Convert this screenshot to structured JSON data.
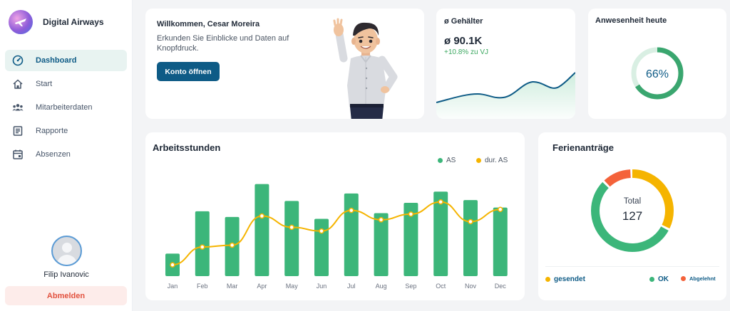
{
  "app": {
    "name": "Digital Airways"
  },
  "sidebar": {
    "items": [
      {
        "label": "Dashboard",
        "icon": "dashboard-icon",
        "active": true
      },
      {
        "label": "Start",
        "icon": "home-icon",
        "active": false
      },
      {
        "label": "Mitarbeiterdaten",
        "icon": "people-icon",
        "active": false
      },
      {
        "label": "Rapporte",
        "icon": "report-icon",
        "active": false
      },
      {
        "label": "Absenzen",
        "icon": "calendar-icon",
        "active": false
      }
    ],
    "user_name": "Filip Ivanovic",
    "logout_label": "Abmelden"
  },
  "welcome": {
    "title": "Willkommen, Cesar Moreira",
    "text": "Erkunden Sie Einblicke und Daten auf Knopfdruck.",
    "button_label": "Konto öffnen"
  },
  "salary": {
    "title": "ø Gehälter",
    "value": "ø 90.1K",
    "change": "+10.8% zu VJ"
  },
  "presence": {
    "title": "Anwesenheit heute",
    "value_label": "66%",
    "fraction": 0.66
  },
  "hours": {
    "title": "Arbeitsstunden",
    "legend": [
      {
        "name": "AS",
        "color": "#3cb67a"
      },
      {
        "name": "dur. AS",
        "color": "#f5b400"
      }
    ]
  },
  "vacation": {
    "title": "Ferienanträge",
    "total_label": "Total",
    "total_value": "127",
    "legend": [
      {
        "name": "gesendet",
        "color": "#f5b400"
      },
      {
        "name": "OK",
        "color": "#3cb67a"
      },
      {
        "name": "Abgelehnt",
        "color": "#f4623a"
      }
    ]
  },
  "colors": {
    "primary": "#0e5b86",
    "green": "#3cb67a",
    "yellow": "#f5b400",
    "red": "#f4623a"
  },
  "chart_data": [
    {
      "type": "bar",
      "categories": [
        "Jan",
        "Feb",
        "Mar",
        "Apr",
        "May",
        "Jun",
        "Jul",
        "Aug",
        "Sep",
        "Oct",
        "Nov",
        "Dec"
      ],
      "series": [
        {
          "name": "AS",
          "values": [
            24,
            69,
            63,
            98,
            80,
            61,
            88,
            67,
            78,
            90,
            81,
            73
          ]
        },
        {
          "name": "dur. AS",
          "values": [
            12,
            31,
            33,
            64,
            52,
            48,
            70,
            60,
            66,
            79,
            58,
            71
          ]
        }
      ],
      "ylim": [
        0,
        100
      ]
    },
    {
      "type": "pie",
      "categories": [
        "gesendet",
        "OK",
        "Abgelehnt"
      ],
      "values": [
        33,
        55,
        12
      ]
    }
  ]
}
